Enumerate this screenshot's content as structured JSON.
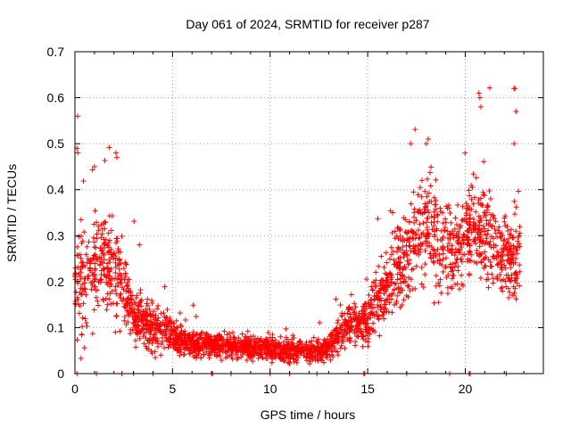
{
  "chart_data": {
    "type": "scatter",
    "title": "Day 061 of 2024, SRMTID for receiver p287",
    "xlabel": "GPS time / hours",
    "ylabel": "SRMTID / TECUs",
    "xlim": [
      0,
      24
    ],
    "ylim": [
      0,
      0.7
    ],
    "xticks": [
      "0",
      "5",
      "10",
      "15",
      "20"
    ],
    "yticks": [
      "0",
      "0.1",
      "0.2",
      "0.3",
      "0.4",
      "0.5",
      "0.6",
      "0.7"
    ],
    "grid": true,
    "marker": "+",
    "marker_color": "#ff0000",
    "series": [
      {
        "name": "p287",
        "profile_hours": [
          0,
          0.3,
          0.8,
          1.5,
          2.0,
          2.5,
          3.0,
          3.5,
          4.0,
          4.5,
          5.0,
          6.0,
          7.0,
          8.0,
          9.0,
          10.0,
          11.0,
          12.0,
          12.5,
          13.0,
          13.5,
          14.0,
          14.5,
          15.0,
          15.5,
          16.0,
          16.5,
          17.0,
          17.5,
          18.0,
          18.5,
          19.0,
          19.5,
          20.0,
          20.5,
          21.0,
          21.5,
          22.0,
          22.5,
          22.8
        ],
        "profile_center": [
          0.19,
          0.18,
          0.22,
          0.25,
          0.24,
          0.18,
          0.13,
          0.11,
          0.1,
          0.09,
          0.08,
          0.065,
          0.06,
          0.06,
          0.055,
          0.055,
          0.05,
          0.05,
          0.045,
          0.06,
          0.08,
          0.1,
          0.11,
          0.12,
          0.15,
          0.19,
          0.23,
          0.26,
          0.29,
          0.3,
          0.28,
          0.27,
          0.28,
          0.3,
          0.32,
          0.31,
          0.27,
          0.25,
          0.25,
          0.26
        ],
        "profile_spread": [
          0.07,
          0.1,
          0.08,
          0.08,
          0.1,
          0.07,
          0.05,
          0.04,
          0.04,
          0.03,
          0.03,
          0.02,
          0.02,
          0.02,
          0.02,
          0.02,
          0.02,
          0.02,
          0.02,
          0.02,
          0.03,
          0.03,
          0.03,
          0.04,
          0.05,
          0.06,
          0.07,
          0.08,
          0.09,
          0.09,
          0.08,
          0.08,
          0.08,
          0.08,
          0.08,
          0.08,
          0.08,
          0.07,
          0.08,
          0.08
        ],
        "peaks": [
          {
            "x": 0.1,
            "y": 0.49
          },
          {
            "x": 0.15,
            "y": 0.48
          },
          {
            "x": 1.0,
            "y": 0.45
          },
          {
            "x": 2.1,
            "y": 0.48
          },
          {
            "x": 2.15,
            "y": 0.47
          },
          {
            "x": 3.3,
            "y": 0.28
          },
          {
            "x": 14.8,
            "y": 0.14
          },
          {
            "x": 17.2,
            "y": 0.5
          },
          {
            "x": 18.0,
            "y": 0.5
          },
          {
            "x": 18.1,
            "y": 0.51
          },
          {
            "x": 20.7,
            "y": 0.61
          },
          {
            "x": 20.75,
            "y": 0.6
          },
          {
            "x": 20.8,
            "y": 0.58
          },
          {
            "x": 22.5,
            "y": 0.62
          },
          {
            "x": 22.55,
            "y": 0.62
          },
          {
            "x": 22.5,
            "y": 0.5
          },
          {
            "x": 22.6,
            "y": 0.57
          }
        ],
        "baseline_marks": [
          0.1,
          1.1,
          2.4,
          3.0,
          4.0,
          7.0,
          7.05,
          8.0,
          10.0,
          11.0,
          12.4,
          14.8,
          14.85,
          17.0,
          19.2,
          20.2,
          20.25,
          22.1
        ]
      }
    ]
  }
}
